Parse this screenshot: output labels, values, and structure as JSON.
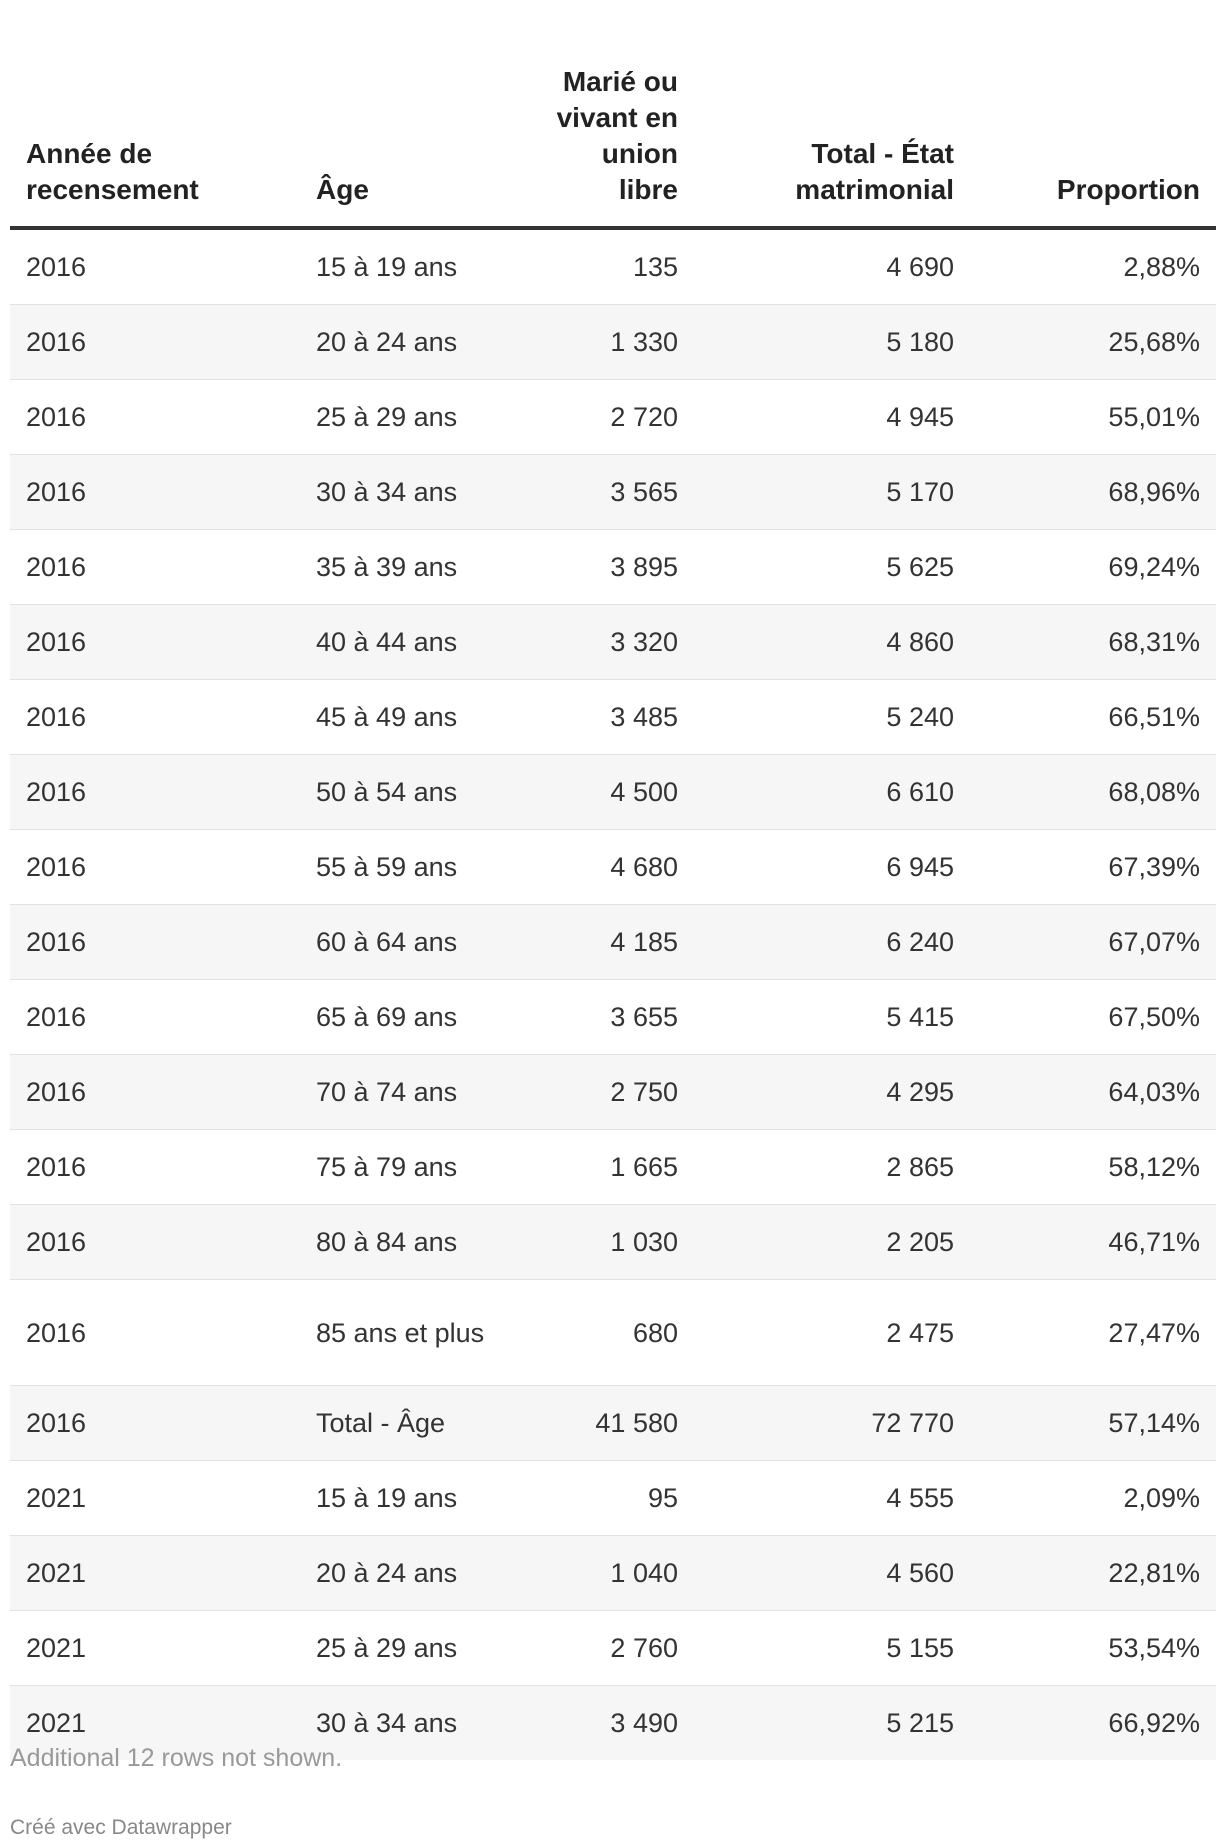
{
  "chart_data": {
    "type": "table",
    "columns": [
      "Année de recensement",
      "Âge",
      "Marié ou vivant en union libre",
      "Total - État matrimonial",
      "Proportion"
    ],
    "column_lines": [
      [
        "Année de",
        "recensement"
      ],
      [
        "Âge"
      ],
      [
        "Marié ou",
        "vivant en",
        "union",
        "libre"
      ],
      [
        "Total - État",
        "matrimonial"
      ],
      [
        "Proportion"
      ]
    ],
    "rows": [
      [
        "2016",
        "15 à 19 ans",
        "135",
        "4 690",
        "2,88%"
      ],
      [
        "2016",
        "20 à 24 ans",
        "1 330",
        "5 180",
        "25,68%"
      ],
      [
        "2016",
        "25 à 29 ans",
        "2 720",
        "4 945",
        "55,01%"
      ],
      [
        "2016",
        "30 à 34 ans",
        "3 565",
        "5 170",
        "68,96%"
      ],
      [
        "2016",
        "35 à 39 ans",
        "3 895",
        "5 625",
        "69,24%"
      ],
      [
        "2016",
        "40 à 44 ans",
        "3 320",
        "4 860",
        "68,31%"
      ],
      [
        "2016",
        "45 à 49 ans",
        "3 485",
        "5 240",
        "66,51%"
      ],
      [
        "2016",
        "50 à 54 ans",
        "4 500",
        "6 610",
        "68,08%"
      ],
      [
        "2016",
        "55 à 59 ans",
        "4 680",
        "6 945",
        "67,39%"
      ],
      [
        "2016",
        "60 à 64 ans",
        "4 185",
        "6 240",
        "67,07%"
      ],
      [
        "2016",
        "65 à 69 ans",
        "3 655",
        "5 415",
        "67,50%"
      ],
      [
        "2016",
        "70 à 74 ans",
        "2 750",
        "4 295",
        "64,03%"
      ],
      [
        "2016",
        "75 à 79 ans",
        "1 665",
        "2 865",
        "58,12%"
      ],
      [
        "2016",
        "80 à 84 ans",
        "1 030",
        "2 205",
        "46,71%"
      ],
      [
        "2016",
        "85 ans et plus",
        "680",
        "2 475",
        "27,47%"
      ],
      [
        "2016",
        "Total - Âge",
        "41 580",
        "72 770",
        "57,14%"
      ],
      [
        "2021",
        "15 à 19 ans",
        "95",
        "4 555",
        "2,09%"
      ],
      [
        "2021",
        "20 à 24 ans",
        "1 040",
        "4 560",
        "22,81%"
      ],
      [
        "2021",
        "25 à 29 ans",
        "2 760",
        "5 155",
        "53,54%"
      ],
      [
        "2021",
        "30 à 34 ans",
        "3 490",
        "5 215",
        "66,92%"
      ]
    ],
    "column_align": [
      "left",
      "left",
      "right",
      "right",
      "right"
    ]
  },
  "footer": {
    "note": "Additional 12 rows not shown.",
    "credit": "Créé avec Datawrapper"
  }
}
